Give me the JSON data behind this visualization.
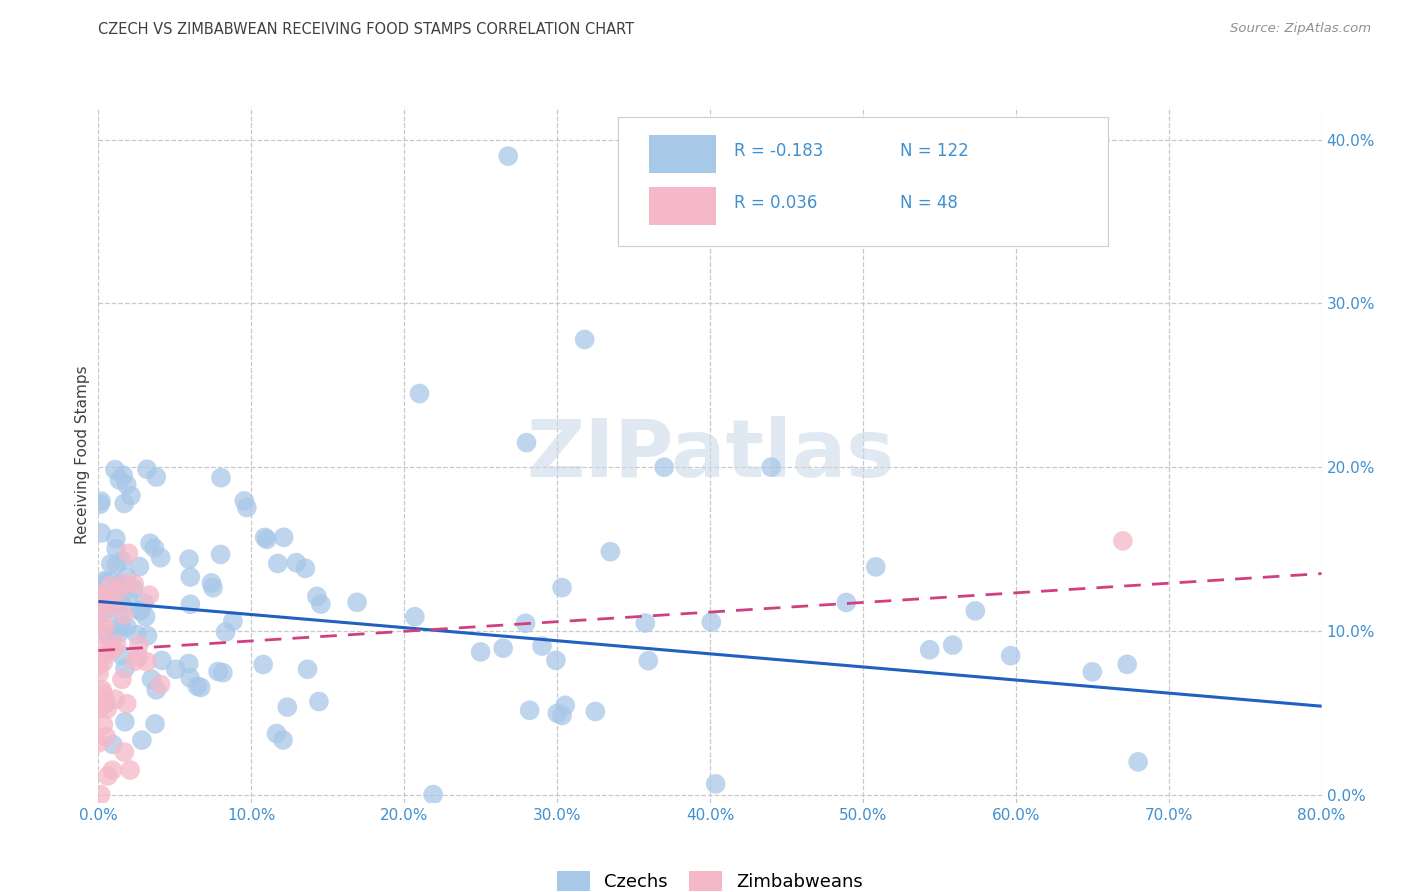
{
  "title": "CZECH VS ZIMBABWEAN RECEIVING FOOD STAMPS CORRELATION CHART",
  "source": "Source: ZipAtlas.com",
  "ylabel": "Receiving Food Stamps",
  "xlim": [
    0.0,
    0.8
  ],
  "ylim": [
    -0.005,
    0.42
  ],
  "background_color": "#ffffff",
  "grid_color": "#c8c8c8",
  "blue_color": "#a8c8e8",
  "pink_color": "#f4b8c8",
  "blue_line_color": "#2060c0",
  "pink_line_color": "#d04080",
  "tick_color": "#4090d0",
  "title_color": "#404040",
  "source_color": "#909090",
  "R_czech": -0.183,
  "N_czech": 122,
  "R_zimb": 0.036,
  "N_zimb": 48,
  "watermark": "ZIPatlas",
  "label_czechs": "Czechs",
  "label_zimb": "Zimbabweans",
  "czech_trend_x0": 0.0,
  "czech_trend_y0": 0.118,
  "czech_trend_x1": 0.8,
  "czech_trend_y1": 0.054,
  "zimb_trend_x0": 0.0,
  "zimb_trend_y0": 0.088,
  "zimb_trend_x1": 0.8,
  "zimb_trend_y1": 0.135
}
